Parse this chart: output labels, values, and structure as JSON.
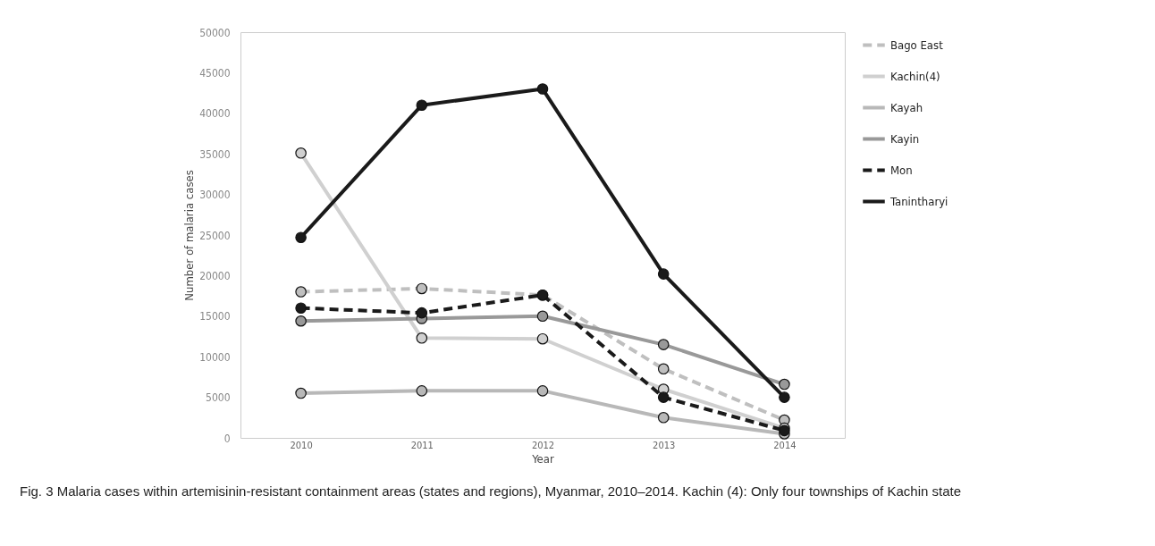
{
  "chart_data": {
    "type": "line",
    "xlabel": "Year",
    "ylabel": "Number of malaria cases",
    "categories": [
      "2010",
      "2011",
      "2012",
      "2013",
      "2014"
    ],
    "ylim": [
      0,
      50000
    ],
    "yticks": [
      0,
      5000,
      10000,
      15000,
      20000,
      25000,
      30000,
      35000,
      40000,
      45000,
      50000
    ],
    "grid": false,
    "legend": "top right",
    "marker": "circle",
    "series": [
      {
        "name": "Bago East",
        "color": "#bfbfbf",
        "line_style": "dashed",
        "values": [
          18000,
          18400,
          17600,
          8500,
          2200
        ]
      },
      {
        "name": "Kachin(4)",
        "color": "#d0d0d0",
        "values": [
          35100,
          12300,
          12200,
          6000,
          1200
        ]
      },
      {
        "name": "Kayah",
        "color": "#b8b8b8",
        "values": [
          5500,
          5800,
          5800,
          2500,
          500
        ]
      },
      {
        "name": "Kayin",
        "color": "#999999",
        "values": [
          14400,
          14700,
          15000,
          11500,
          6600
        ]
      },
      {
        "name": "Mon",
        "color": "#1a1a1a",
        "line_style": "dashed",
        "values": [
          16000,
          15400,
          17600,
          5000,
          900
        ]
      },
      {
        "name": "Tanintharyi",
        "color": "#1a1a1a",
        "values": [
          24700,
          41000,
          43000,
          20200,
          5000
        ]
      }
    ],
    "annotations": [
      "Fig. 3 Malaria cases within artemisinin-resistant containment areas (states and regions), Myanmar, 2010–2014. Kachin (4): Only four townships of Kachin state"
    ]
  }
}
